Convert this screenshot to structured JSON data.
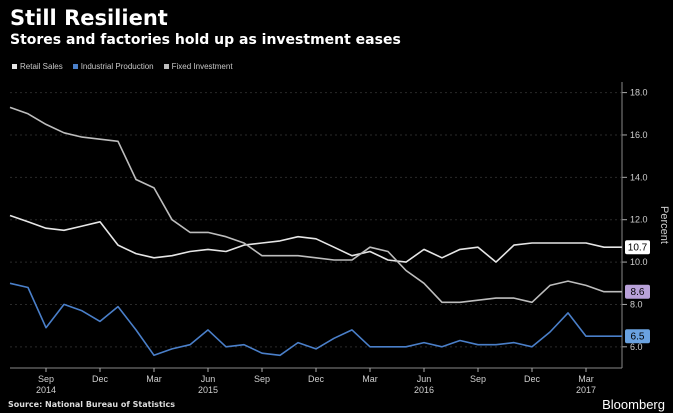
{
  "title": "Still Resilient",
  "subtitle": "Stores and factories hold up as investment eases",
  "source": "Source: National Bureau of Statistics",
  "brand": "Bloomberg",
  "chart_data": {
    "type": "line",
    "ylabel": "Percent",
    "ylim": [
      5.0,
      18.5
    ],
    "yticks": [
      6.0,
      8.0,
      10.0,
      12.0,
      14.0,
      16.0,
      18.0
    ],
    "ytick_labels": [
      "6.0",
      "8.0",
      "10.0",
      "12.0",
      "14.0",
      "16.0",
      "18.0"
    ],
    "x_ticks": [
      {
        "month": "Sep",
        "year": "2014",
        "x": "2014-09"
      },
      {
        "month": "Dec",
        "year": "",
        "x": "2014-12"
      },
      {
        "month": "Mar",
        "year": "",
        "x": "2015-03"
      },
      {
        "month": "Jun",
        "year": "2015",
        "x": "2015-06"
      },
      {
        "month": "Sep",
        "year": "",
        "x": "2015-09"
      },
      {
        "month": "Dec",
        "year": "",
        "x": "2015-12"
      },
      {
        "month": "Mar",
        "year": "",
        "x": "2016-03"
      },
      {
        "month": "Jun",
        "year": "2016",
        "x": "2016-06"
      },
      {
        "month": "Sep",
        "year": "",
        "x": "2016-09"
      },
      {
        "month": "Dec",
        "year": "",
        "x": "2016-12"
      },
      {
        "month": "Mar",
        "year": "2017",
        "x": "2017-03"
      }
    ],
    "x": [
      "2014-07",
      "2014-08",
      "2014-09",
      "2014-10",
      "2014-11",
      "2014-12",
      "2015-01",
      "2015-02",
      "2015-03",
      "2015-04",
      "2015-05",
      "2015-06",
      "2015-07",
      "2015-08",
      "2015-09",
      "2015-10",
      "2015-11",
      "2015-12",
      "2016-01",
      "2016-02",
      "2016-03",
      "2016-04",
      "2016-05",
      "2016-06",
      "2016-07",
      "2016-08",
      "2016-09",
      "2016-10",
      "2016-11",
      "2016-12",
      "2017-01",
      "2017-02",
      "2017-03",
      "2017-04",
      "2017-05"
    ],
    "series": [
      {
        "name": "Retail Sales",
        "color": "#e6e6e6",
        "end_label": "10.7",
        "values": [
          12.2,
          11.9,
          11.6,
          11.5,
          11.7,
          11.9,
          10.8,
          10.4,
          10.2,
          10.3,
          10.5,
          10.6,
          10.5,
          10.8,
          10.9,
          11.0,
          11.2,
          11.1,
          10.7,
          10.3,
          10.5,
          10.1,
          10.0,
          10.6,
          10.2,
          10.6,
          10.7,
          10.0,
          10.8,
          10.9,
          10.9,
          10.9,
          10.9,
          10.7,
          10.7
        ]
      },
      {
        "name": "Industrial Production",
        "color": "#4a7fc9",
        "end_label": "6.5",
        "values": [
          9.0,
          8.8,
          6.9,
          8.0,
          7.7,
          7.2,
          7.9,
          6.8,
          5.6,
          5.9,
          6.1,
          6.8,
          6.0,
          6.1,
          5.7,
          5.6,
          6.2,
          5.9,
          6.4,
          6.8,
          6.0,
          6.0,
          6.0,
          6.2,
          6.0,
          6.3,
          6.1,
          6.1,
          6.2,
          6.0,
          6.7,
          7.6,
          6.5,
          6.5,
          6.5
        ]
      },
      {
        "name": "Fixed Investment",
        "color": "#bdbdbd",
        "end_label": "8.6",
        "values": [
          17.3,
          17.0,
          16.5,
          16.1,
          15.9,
          15.8,
          15.7,
          13.9,
          13.5,
          12.0,
          11.4,
          11.4,
          11.2,
          10.9,
          10.3,
          10.3,
          10.3,
          10.2,
          10.1,
          10.1,
          10.7,
          10.5,
          9.6,
          9.0,
          8.1,
          8.1,
          8.2,
          8.3,
          8.3,
          8.1,
          8.9,
          9.1,
          8.9,
          8.6,
          8.6
        ]
      }
    ]
  }
}
